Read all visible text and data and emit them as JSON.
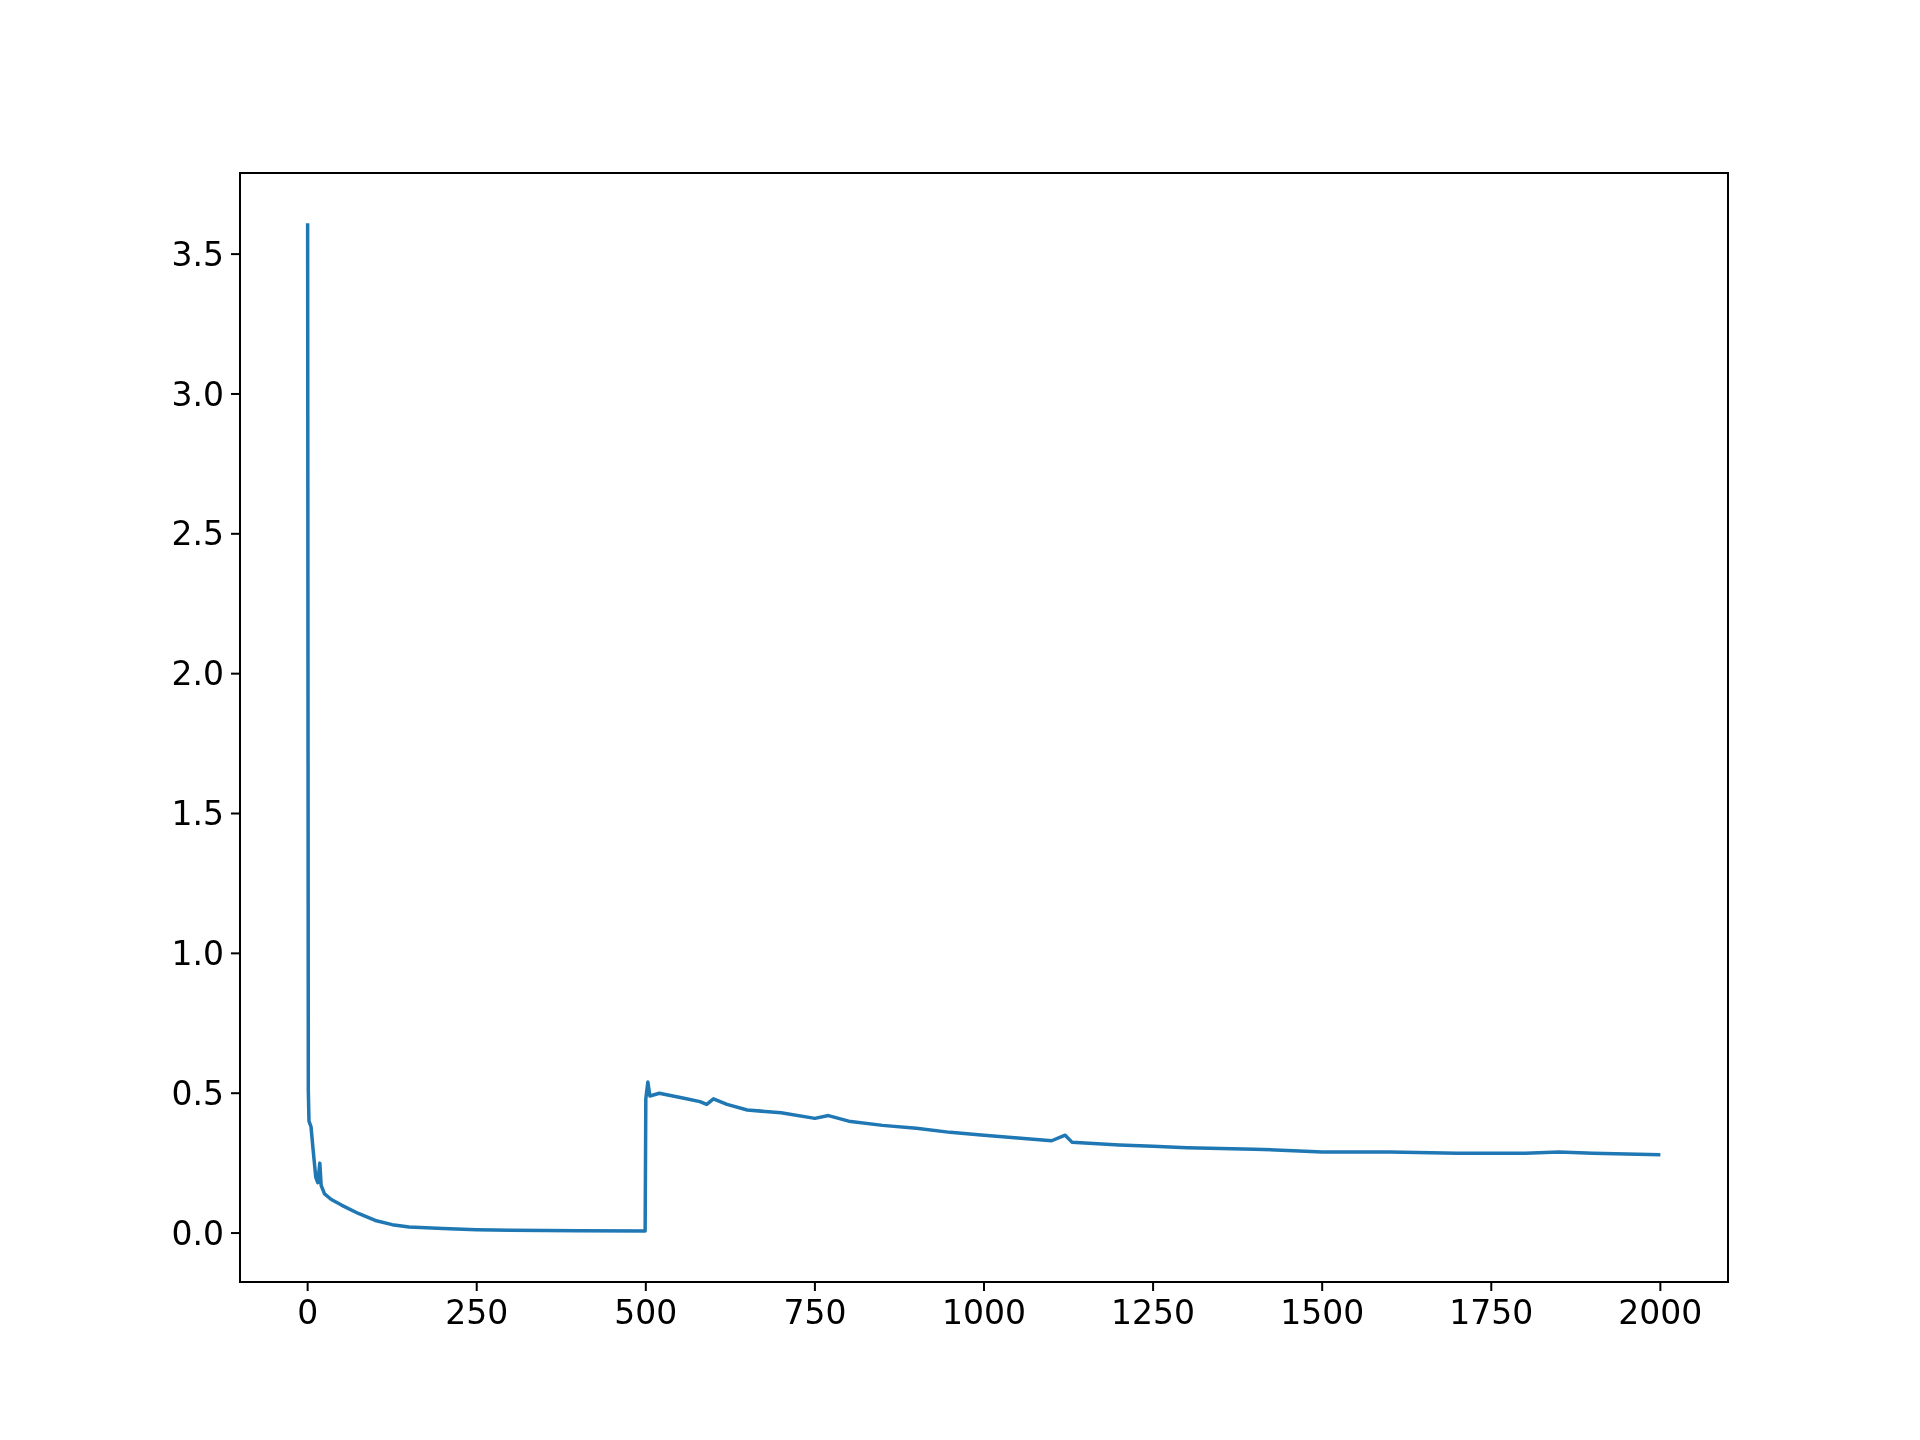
{
  "chart_data": {
    "type": "line",
    "x": [
      0,
      1,
      2,
      5,
      8,
      12,
      15,
      18,
      20,
      25,
      35,
      50,
      75,
      100,
      125,
      150,
      200,
      250,
      300,
      400,
      499,
      500,
      503,
      506,
      520,
      540,
      560,
      580,
      590,
      600,
      620,
      650,
      700,
      750,
      770,
      800,
      850,
      900,
      950,
      1000,
      1050,
      1100,
      1120,
      1130,
      1200,
      1250,
      1300,
      1400,
      1500,
      1600,
      1700,
      1800,
      1850,
      1900,
      2000
    ],
    "series": [
      {
        "color": "#1f77b4",
        "values": [
          3.61,
          0.51,
          0.4,
          0.38,
          0.3,
          0.2,
          0.18,
          0.25,
          0.17,
          0.14,
          0.12,
          0.1,
          0.07,
          0.045,
          0.03,
          0.022,
          0.016,
          0.012,
          0.01,
          0.008,
          0.007,
          0.48,
          0.54,
          0.49,
          0.5,
          0.49,
          0.48,
          0.47,
          0.46,
          0.48,
          0.46,
          0.44,
          0.43,
          0.41,
          0.42,
          0.4,
          0.385,
          0.375,
          0.36,
          0.35,
          0.34,
          0.33,
          0.35,
          0.325,
          0.315,
          0.31,
          0.305,
          0.3,
          0.29,
          0.29,
          0.285,
          0.285,
          0.29,
          0.285,
          0.28
        ]
      }
    ],
    "xlim": [
      -100,
      2100
    ],
    "ylim": [
      -0.175,
      3.79
    ],
    "xticks": [
      0,
      250,
      500,
      750,
      1000,
      1250,
      1500,
      1750,
      2000
    ],
    "yticks": [
      {
        "value": 0,
        "label": "0.0"
      },
      {
        "value": 0.5,
        "label": "0.5"
      },
      {
        "value": 1,
        "label": "1.0"
      },
      {
        "value": 1.5,
        "label": "1.5"
      },
      {
        "value": 2,
        "label": "2.0"
      },
      {
        "value": 2.5,
        "label": "2.5"
      },
      {
        "value": 3,
        "label": "3.0"
      },
      {
        "value": 3.5,
        "label": "3.5"
      }
    ],
    "grid": false
  }
}
